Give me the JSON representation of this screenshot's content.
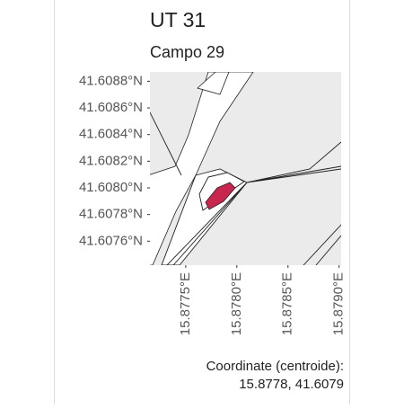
{
  "map": {
    "title": "UT 31",
    "subtitle": "Campo 29",
    "xlim": [
      15.87715,
      15.87902
    ],
    "ylim": [
      41.60742,
      41.60887
    ],
    "xticks": [
      {
        "value": 15.8775,
        "label": "15.8775°E"
      },
      {
        "value": 15.878,
        "label": "15.8780°E"
      },
      {
        "value": 15.8785,
        "label": "15.8785°E"
      },
      {
        "value": 15.879,
        "label": "15.8790°E"
      }
    ],
    "yticks": [
      {
        "value": 41.6088,
        "label": "41.6088°N"
      },
      {
        "value": 41.6086,
        "label": "41.6086°N"
      },
      {
        "value": 41.6084,
        "label": "41.6084°N"
      },
      {
        "value": 41.6082,
        "label": "41.6082°N"
      },
      {
        "value": 41.608,
        "label": "41.6080°N"
      },
      {
        "value": 41.6078,
        "label": "41.6078°N"
      },
      {
        "value": 41.6076,
        "label": "41.6076°N"
      }
    ],
    "caption": [
      "Coordinate (centroide):",
      "15.8778, 41.6079"
    ]
  }
}
